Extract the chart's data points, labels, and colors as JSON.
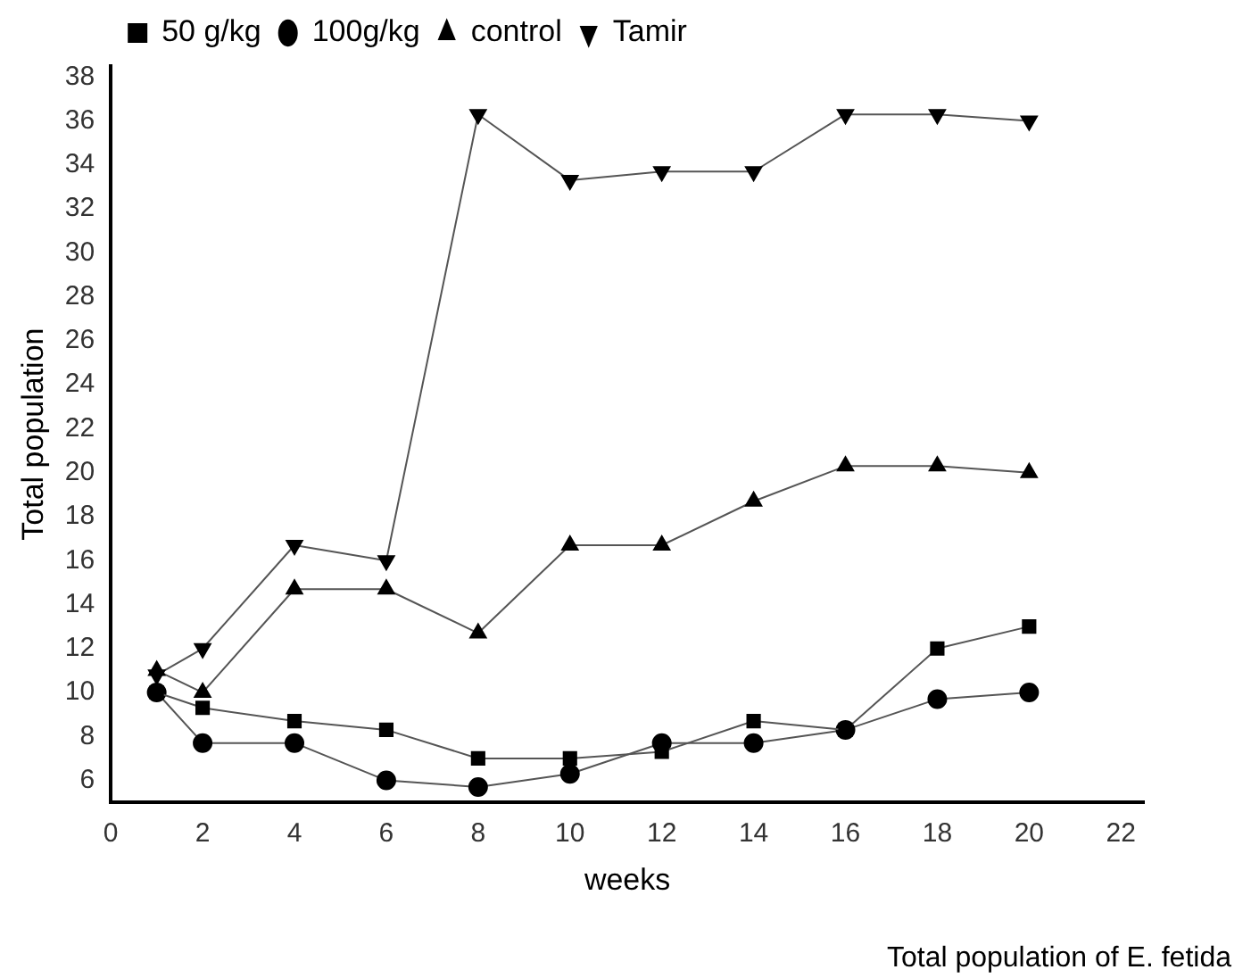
{
  "chart_data": {
    "type": "line",
    "xlabel": "weeks",
    "ylabel": "Total population",
    "annotations": [
      "Total population of E. fetida"
    ],
    "xlim": [
      0,
      22.5
    ],
    "xticks": [
      0,
      2,
      4,
      6,
      8,
      10,
      12,
      14,
      16,
      18,
      20,
      22
    ],
    "ylim": [
      5,
      38.5
    ],
    "yticks": [
      6,
      8,
      10,
      12,
      14,
      16,
      18,
      20,
      22,
      24,
      26,
      28,
      30,
      32,
      34,
      36,
      38
    ],
    "grid": false,
    "legend": "top left",
    "line_style": "solid",
    "x": [
      1,
      2,
      4,
      6,
      8,
      10,
      12,
      14,
      16,
      18,
      20
    ],
    "series": [
      {
        "name": "50 g/kg",
        "color": "#000000",
        "marker": "square",
        "values": [
          10,
          9.3,
          8.7,
          8.3,
          7.0,
          7.0,
          7.3,
          8.7,
          8.3,
          12.0,
          13.0
        ]
      },
      {
        "name": "100g/kg",
        "color": "#000000",
        "marker": "circle",
        "values": [
          10,
          7.7,
          7.7,
          6.0,
          5.7,
          6.3,
          7.7,
          7.7,
          8.3,
          9.7,
          10
        ]
      },
      {
        "name": "control",
        "color": "#000000",
        "marker": "triangle",
        "values": [
          11,
          10,
          14.7,
          14.7,
          12.7,
          16.7,
          16.7,
          18.7,
          20.3,
          20.3,
          20
        ]
      },
      {
        "name": "Tamir",
        "color": "#000000",
        "marker": "triangle-down",
        "values": [
          10.8,
          12,
          16.7,
          16,
          36.3,
          33.3,
          33.7,
          33.7,
          36.3,
          36.3,
          36
        ]
      }
    ]
  }
}
